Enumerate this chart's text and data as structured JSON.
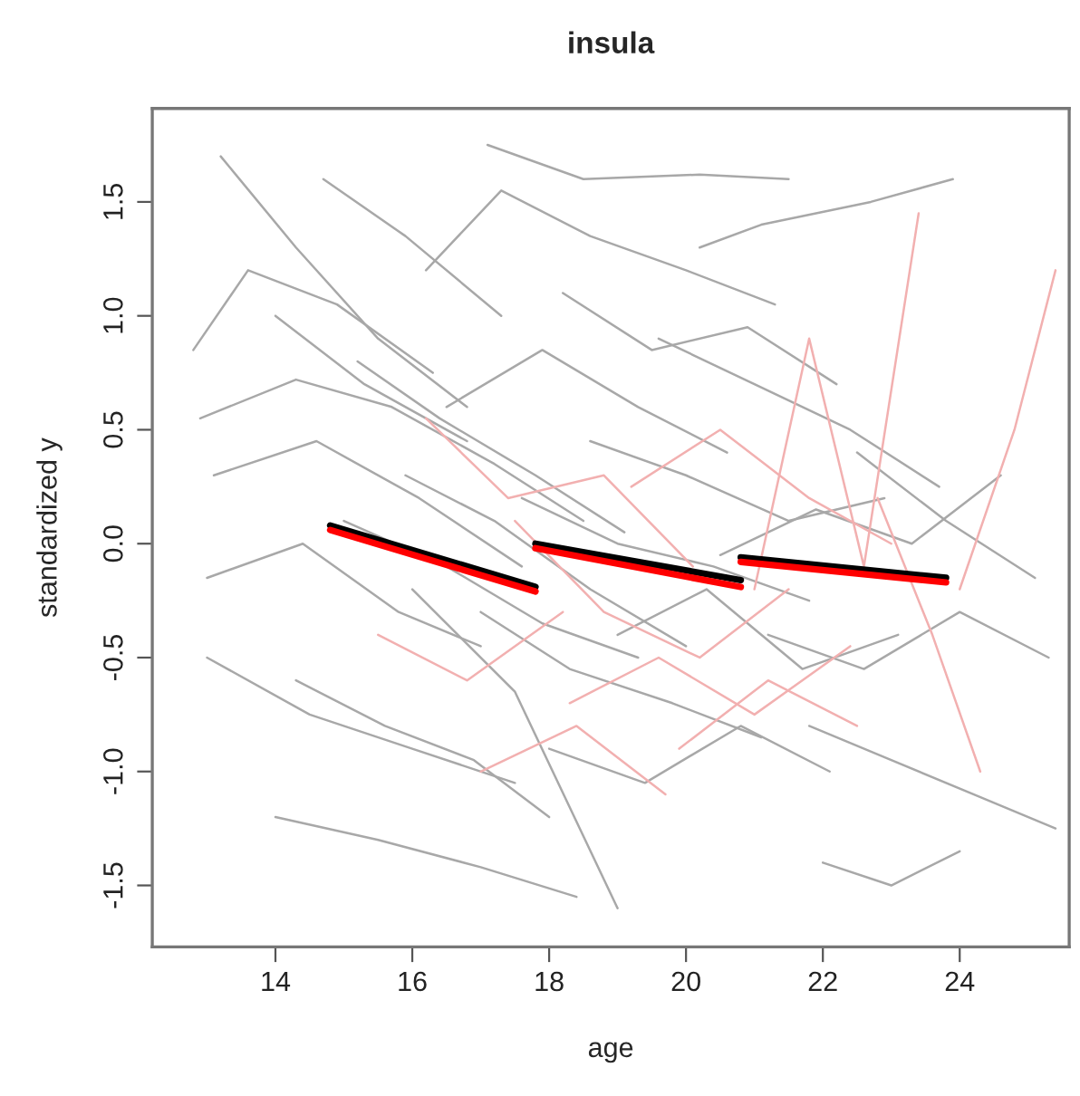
{
  "chart_data": {
    "type": "line",
    "title": "insula",
    "xlabel": "age",
    "ylabel": "standardized y",
    "xlim": [
      12.2,
      25.6
    ],
    "ylim": [
      -1.77,
      1.91
    ],
    "xticks": [
      14,
      16,
      18,
      20,
      22,
      24
    ],
    "yticks": [
      -1.5,
      {
        "value": -1.0,
        "label": "-1.0"
      },
      -0.5,
      {
        "value": 0.0,
        "label": "0.0"
      },
      0.5,
      {
        "value": 1.0,
        "label": "1.0"
      },
      1.5
    ],
    "grid": false,
    "legend": false,
    "marker": "none",
    "line_style": "solid",
    "series": [
      {
        "color": "#a8a8a8",
        "x": [
          13.2,
          14.3,
          15.5,
          16.8
        ],
        "values": [
          1.7,
          1.3,
          0.9,
          0.6
        ]
      },
      {
        "color": "#a8a8a8",
        "x": [
          12.8,
          13.6,
          14.9,
          16.3
        ],
        "values": [
          0.85,
          1.2,
          1.05,
          0.75
        ]
      },
      {
        "color": "#a8a8a8",
        "x": [
          14.7,
          15.9,
          17.3
        ],
        "values": [
          1.6,
          1.35,
          1.0
        ]
      },
      {
        "color": "#a8a8a8",
        "x": [
          17.1,
          18.5,
          20.2,
          21.5
        ],
        "values": [
          1.75,
          1.6,
          1.62,
          1.6
        ]
      },
      {
        "color": "#a8a8a8",
        "x": [
          16.2,
          17.3,
          18.6,
          20.0,
          21.3
        ],
        "values": [
          1.2,
          1.55,
          1.35,
          1.2,
          1.05
        ]
      },
      {
        "color": "#a8a8a8",
        "x": [
          20.2,
          21.1,
          22.7,
          23.9
        ],
        "values": [
          1.3,
          1.4,
          1.5,
          1.6
        ]
      },
      {
        "color": "#a8a8a8",
        "x": [
          12.9,
          14.3,
          15.7,
          17.2,
          18.5
        ],
        "values": [
          0.55,
          0.72,
          0.6,
          0.35,
          0.1
        ]
      },
      {
        "color": "#a8a8a8",
        "x": [
          13.1,
          14.6,
          16.1,
          17.6
        ],
        "values": [
          0.3,
          0.45,
          0.2,
          -0.1
        ]
      },
      {
        "color": "#a8a8a8",
        "x": [
          13.0,
          14.4,
          15.8,
          17.0
        ],
        "values": [
          -0.15,
          0.0,
          -0.3,
          -0.45
        ]
      },
      {
        "color": "#a8a8a8",
        "x": [
          13.0,
          14.5,
          16.0,
          17.5
        ],
        "values": [
          -0.5,
          -0.75,
          -0.9,
          -1.05
        ]
      },
      {
        "color": "#a8a8a8",
        "x": [
          14.0,
          15.5,
          17.0,
          18.4
        ],
        "values": [
          -1.2,
          -1.3,
          -1.42,
          -1.55
        ]
      },
      {
        "color": "#a8a8a8",
        "x": [
          14.3,
          15.6,
          16.9,
          18.0
        ],
        "values": [
          -0.6,
          -0.8,
          -0.95,
          -1.2
        ]
      },
      {
        "color": "#a8a8a8",
        "x": [
          15.2,
          16.4,
          17.8,
          19.1
        ],
        "values": [
          0.8,
          0.55,
          0.3,
          0.05
        ]
      },
      {
        "color": "#a8a8a8",
        "x": [
          15.9,
          17.2,
          18.6,
          20.0
        ],
        "values": [
          0.3,
          0.1,
          -0.2,
          -0.45
        ]
      },
      {
        "color": "#a8a8a8",
        "x": [
          16.5,
          17.9,
          19.3,
          20.6
        ],
        "values": [
          0.6,
          0.85,
          0.6,
          0.4
        ]
      },
      {
        "color": "#a8a8a8",
        "x": [
          17.0,
          18.3,
          19.8,
          21.1
        ],
        "values": [
          -0.3,
          -0.55,
          -0.7,
          -0.85
        ]
      },
      {
        "color": "#a8a8a8",
        "x": [
          17.6,
          19.0,
          20.4,
          21.8
        ],
        "values": [
          0.2,
          0.0,
          -0.1,
          -0.25
        ]
      },
      {
        "color": "#a8a8a8",
        "x": [
          18.0,
          19.4,
          20.8,
          22.1
        ],
        "values": [
          -0.9,
          -1.05,
          -0.8,
          -1.0
        ]
      },
      {
        "color": "#a8a8a8",
        "x": [
          18.6,
          20.0,
          21.5,
          22.9
        ],
        "values": [
          0.45,
          0.3,
          0.1,
          0.2
        ]
      },
      {
        "color": "#a8a8a8",
        "x": [
          19.0,
          20.3,
          21.7,
          23.1
        ],
        "values": [
          -0.4,
          -0.2,
          -0.55,
          -0.4
        ]
      },
      {
        "color": "#a8a8a8",
        "x": [
          19.6,
          21.0,
          22.4,
          23.7
        ],
        "values": [
          0.9,
          0.7,
          0.5,
          0.25
        ]
      },
      {
        "color": "#a8a8a8",
        "x": [
          20.5,
          21.9,
          23.3,
          24.6
        ],
        "values": [
          -0.05,
          0.15,
          0.0,
          0.3
        ]
      },
      {
        "color": "#a8a8a8",
        "x": [
          21.2,
          22.6,
          24.0,
          25.3
        ],
        "values": [
          -0.4,
          -0.55,
          -0.3,
          -0.5
        ]
      },
      {
        "color": "#a8a8a8",
        "x": [
          21.8,
          23.0,
          24.2,
          25.4
        ],
        "values": [
          -0.8,
          -0.95,
          -1.1,
          -1.25
        ]
      },
      {
        "color": "#a8a8a8",
        "x": [
          22.0,
          23.0,
          24.0
        ],
        "values": [
          -1.4,
          -1.5,
          -1.35
        ]
      },
      {
        "color": "#a8a8a8",
        "x": [
          22.5,
          23.8,
          25.1
        ],
        "values": [
          0.4,
          0.1,
          -0.15
        ]
      },
      {
        "color": "#a8a8a8",
        "x": [
          16.0,
          17.5,
          19.0
        ],
        "values": [
          -0.2,
          -0.65,
          -1.6
        ]
      },
      {
        "color": "#a8a8a8",
        "x": [
          15.0,
          16.5,
          17.9,
          19.3
        ],
        "values": [
          0.1,
          -0.1,
          -0.35,
          -0.5
        ]
      },
      {
        "color": "#a8a8a8",
        "x": [
          14.0,
          15.3,
          16.8
        ],
        "values": [
          1.0,
          0.7,
          0.45
        ]
      },
      {
        "color": "#a8a8a8",
        "x": [
          18.2,
          19.5,
          20.9,
          22.2
        ],
        "values": [
          1.1,
          0.85,
          0.95,
          0.7
        ]
      },
      {
        "color": "#f2b0b0",
        "x": [
          16.2,
          17.4,
          18.8,
          20.1
        ],
        "values": [
          0.55,
          0.2,
          0.3,
          -0.1
        ]
      },
      {
        "color": "#f2b0b0",
        "x": [
          15.5,
          16.8,
          18.2
        ],
        "values": [
          -0.4,
          -0.6,
          -0.3
        ]
      },
      {
        "color": "#f2b0b0",
        "x": [
          17.5,
          18.8,
          20.2,
          21.5
        ],
        "values": [
          0.1,
          -0.3,
          -0.5,
          -0.2
        ]
      },
      {
        "color": "#f2b0b0",
        "x": [
          18.3,
          19.6,
          21.0,
          22.4
        ],
        "values": [
          -0.7,
          -0.5,
          -0.75,
          -0.45
        ]
      },
      {
        "color": "#f2b0b0",
        "x": [
          19.2,
          20.5,
          21.8,
          23.0
        ],
        "values": [
          0.25,
          0.5,
          0.2,
          0.0
        ]
      },
      {
        "color": "#f2b0b0",
        "x": [
          21.0,
          21.8,
          22.6,
          23.4
        ],
        "values": [
          -0.2,
          0.9,
          -0.1,
          1.45
        ]
      },
      {
        "color": "#f2b0b0",
        "x": [
          22.8,
          23.6,
          24.3
        ],
        "values": [
          0.2,
          -0.4,
          -1.0
        ]
      },
      {
        "color": "#f2b0b0",
        "x": [
          24.0,
          24.8,
          25.4
        ],
        "values": [
          -0.2,
          0.5,
          1.2
        ]
      },
      {
        "color": "#f2b0b0",
        "x": [
          17.0,
          18.4,
          19.7
        ],
        "values": [
          -1.0,
          -0.8,
          -1.1
        ]
      },
      {
        "color": "#f2b0b0",
        "x": [
          19.9,
          21.2,
          22.5
        ],
        "values": [
          -0.9,
          -0.6,
          -0.8
        ]
      },
      {
        "color": "#000000",
        "x": [
          14.8,
          17.8
        ],
        "values": [
          0.08,
          -0.19
        ]
      },
      {
        "color": "#ff0000",
        "x": [
          14.8,
          17.8
        ],
        "values": [
          0.06,
          -0.21
        ]
      },
      {
        "color": "#000000",
        "x": [
          17.8,
          20.8
        ],
        "values": [
          0.0,
          -0.16
        ]
      },
      {
        "color": "#ff0000",
        "x": [
          17.8,
          20.8
        ],
        "values": [
          -0.02,
          -0.19
        ]
      },
      {
        "color": "#000000",
        "x": [
          20.8,
          23.8
        ],
        "values": [
          -0.06,
          -0.15
        ]
      },
      {
        "color": "#ff0000",
        "x": [
          20.8,
          23.8
        ],
        "values": [
          -0.08,
          -0.17
        ]
      }
    ]
  }
}
